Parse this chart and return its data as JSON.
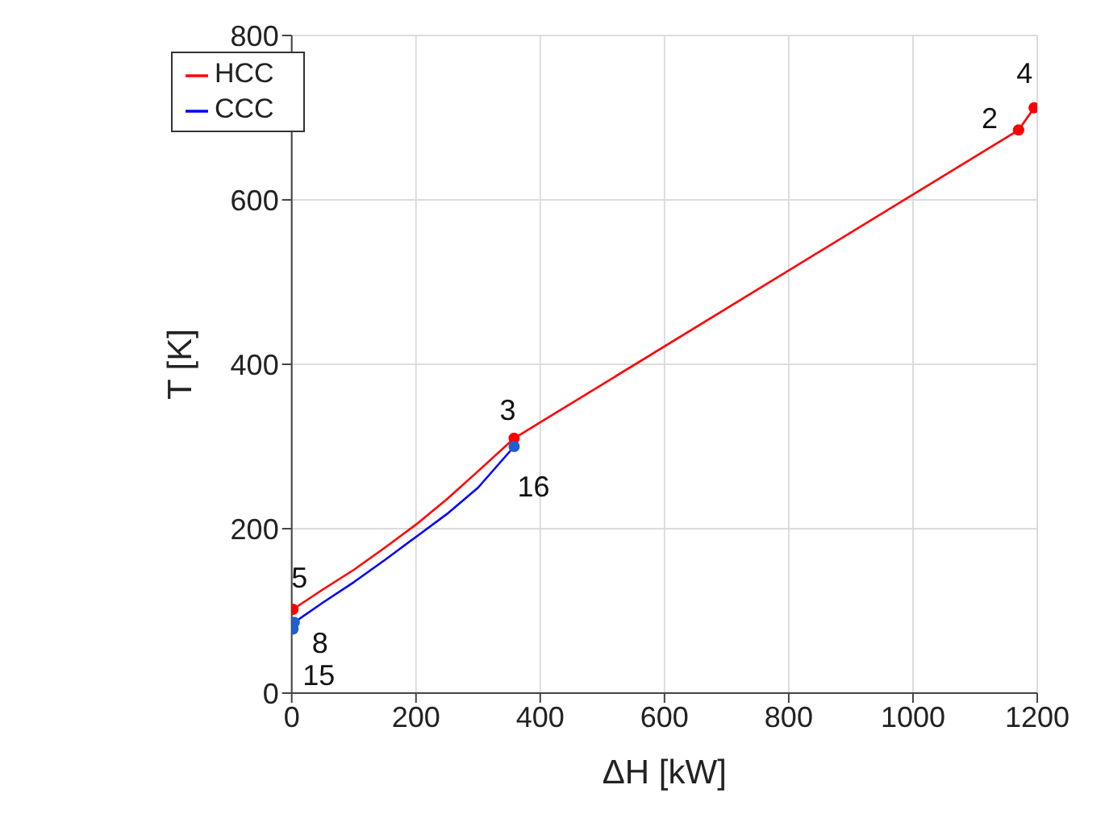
{
  "chart_data": {
    "type": "line",
    "xlabel": "ΔH [kW]",
    "ylabel": "T [K]",
    "xlim": [
      0,
      1200
    ],
    "ylim": [
      0,
      800
    ],
    "xticks": [
      0,
      200,
      400,
      600,
      800,
      1000,
      1200
    ],
    "yticks": [
      0,
      200,
      400,
      600,
      800
    ],
    "grid": true,
    "legend": "top left",
    "marker": "none",
    "series": [
      {
        "name": "HCC",
        "color": "#ff0000",
        "x": [
          2,
          50,
          100,
          150,
          200,
          250,
          300,
          358,
          1170,
          1195
        ],
        "values": [
          102,
          126,
          150,
          177,
          205,
          236,
          270,
          310,
          685,
          712
        ]
      },
      {
        "name": "CCC",
        "color": "#0000ff",
        "x": [
          2,
          4,
          50,
          100,
          150,
          200,
          250,
          300,
          358
        ],
        "values": [
          78,
          86,
          110,
          135,
          162,
          190,
          218,
          250,
          300
        ]
      },
      {
        "type": "scatter",
        "color": "#ff0000",
        "marker": "circle",
        "x": [
          2,
          358,
          1170,
          1195
        ],
        "values": [
          102,
          310,
          685,
          712
        ]
      },
      {
        "type": "scatter",
        "color": "#1f5fd0",
        "marker": "circle",
        "x": [
          2,
          4,
          358
        ],
        "values": [
          78,
          86,
          300
        ]
      }
    ],
    "annotations": [
      {
        "text": "5",
        "x": 2,
        "y": 102
      },
      {
        "text": "8",
        "x": 4,
        "y": 86
      },
      {
        "text": "15",
        "x": 2,
        "y": 78
      },
      {
        "text": "3",
        "x": 358,
        "y": 310
      },
      {
        "text": "16",
        "x": 358,
        "y": 300
      },
      {
        "text": "2",
        "x": 1170,
        "y": 685
      },
      {
        "text": "4",
        "x": 1195,
        "y": 712
      }
    ]
  }
}
